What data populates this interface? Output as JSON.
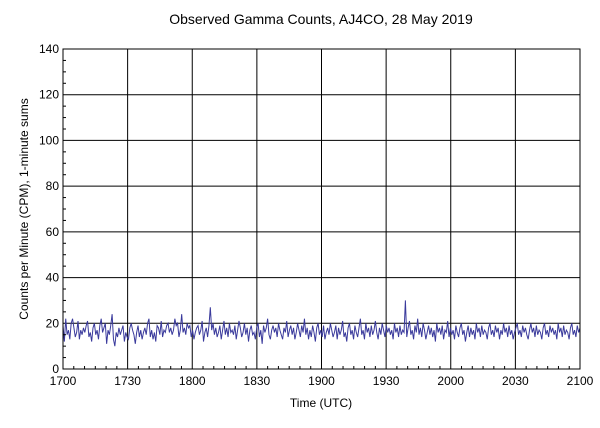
{
  "chart_data": {
    "type": "line",
    "title": "Observed Gamma Counts, AJ4CO, 28 May 2019",
    "xlabel": "Time (UTC)",
    "ylabel": "Counts per Minute (CPM), 1-minute sums",
    "x_start": "1700",
    "x_end": "2100",
    "x_ticks": [
      "1700",
      "1730",
      "1800",
      "1830",
      "1900",
      "1930",
      "2000",
      "2030",
      "2100"
    ],
    "y_ticks": [
      "0",
      "20",
      "40",
      "60",
      "80",
      "100",
      "120",
      "140"
    ],
    "ylim": [
      0,
      140
    ],
    "grid": true,
    "line_color": "#3a3a9c",
    "series": [
      {
        "values": [
          19,
          12,
          22,
          15,
          17,
          13,
          20,
          22,
          18,
          14,
          16,
          21,
          13,
          17,
          15,
          18,
          16,
          19,
          21,
          14,
          16,
          12,
          18,
          20,
          15,
          17,
          13,
          19,
          22,
          16,
          18,
          20,
          11,
          17,
          15,
          19,
          24,
          13,
          10,
          16,
          14,
          18,
          15,
          17,
          19,
          12,
          16,
          14,
          13,
          18,
          20,
          17,
          15,
          11,
          16,
          19,
          14,
          17,
          13,
          16,
          18,
          15,
          20,
          22,
          14,
          17,
          13,
          16,
          12,
          19,
          18,
          15,
          21,
          14,
          17,
          16,
          19,
          20,
          16,
          18,
          15,
          17,
          22,
          19,
          20,
          14,
          17,
          24,
          16,
          18,
          15,
          20,
          18,
          19,
          14,
          17,
          13,
          16,
          18,
          19,
          15,
          17,
          21,
          12,
          16,
          18,
          14,
          19,
          27,
          17,
          20,
          15,
          18,
          14,
          16,
          19,
          13,
          17,
          21,
          15,
          18,
          14,
          20,
          16,
          17,
          15,
          19,
          13,
          17,
          21,
          18,
          14,
          16,
          20,
          15,
          18,
          12,
          17,
          19,
          15,
          16,
          13,
          18,
          20,
          14,
          17,
          11,
          19,
          16,
          18,
          22,
          15,
          13,
          17,
          19,
          16,
          18,
          14,
          20,
          17,
          15,
          13,
          18,
          16,
          21,
          14,
          17,
          19,
          15,
          18,
          13,
          16,
          20,
          17,
          14,
          19,
          16,
          22,
          15,
          18,
          13,
          17,
          14,
          19,
          16,
          12,
          18,
          20,
          15,
          17,
          14,
          19,
          13,
          16,
          18,
          15,
          20,
          17,
          14,
          16,
          19,
          13,
          18,
          15,
          17,
          21,
          14,
          16,
          12,
          18,
          20,
          15,
          17,
          13,
          19,
          16,
          14,
          18,
          22,
          15,
          17,
          13,
          20,
          16,
          18,
          14,
          19,
          15,
          17,
          21,
          16,
          13,
          18,
          15,
          20,
          17,
          14,
          19,
          16,
          18,
          15,
          17,
          13,
          20,
          16,
          18,
          14,
          19,
          15,
          17,
          16,
          30,
          14,
          18,
          21,
          15,
          17,
          13,
          19,
          16,
          22,
          15,
          18,
          14,
          20,
          17,
          13,
          16,
          19,
          15,
          18,
          14,
          17,
          12,
          20,
          16,
          18,
          15,
          19,
          13,
          17,
          16,
          21,
          14,
          18,
          15,
          17,
          13,
          19,
          16,
          14,
          18,
          20,
          15,
          17,
          12,
          16,
          19,
          14,
          18,
          15,
          17,
          13,
          20,
          16,
          18,
          14,
          19,
          15,
          17,
          16,
          13,
          18,
          20,
          15,
          17,
          14,
          19,
          16,
          18,
          13,
          17,
          15,
          20,
          16,
          18,
          14,
          19,
          15,
          17,
          13,
          16,
          18,
          20,
          15,
          17,
          14,
          19,
          16,
          18,
          15,
          13,
          17,
          20,
          16,
          18,
          14,
          19,
          15,
          17,
          16,
          13,
          18,
          20,
          15,
          17,
          14,
          19,
          16,
          18,
          15,
          17,
          13,
          20,
          16,
          18,
          14,
          19,
          15,
          17,
          16,
          13,
          18,
          20,
          15,
          17,
          14,
          19,
          16,
          18
        ]
      }
    ]
  }
}
